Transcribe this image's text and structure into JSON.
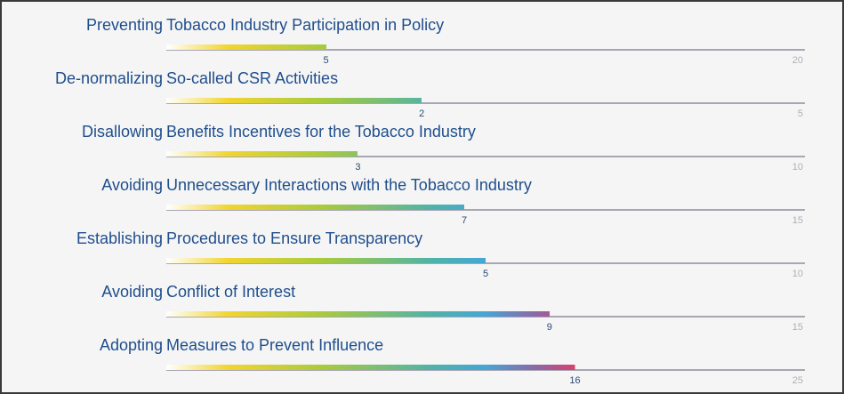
{
  "chart_data": {
    "type": "bar",
    "orientation": "horizontal",
    "categories": [
      "Preventing Tobacco Industry Participation in Policy",
      "De-normalizing So-called CSR Activities",
      "Disallowing Benefits Incentives for the Tobacco Industry",
      "Avoiding Unnecessary Interactions with the Tobacco Industry",
      "Establishing Procedures to Ensure Transparency",
      "Avoiding Conflict of Interest",
      "Adopting Measures to Prevent Influence"
    ],
    "values": [
      5,
      2,
      3,
      7,
      5,
      9,
      16
    ],
    "max_values": [
      20,
      5,
      10,
      15,
      10,
      15,
      25
    ],
    "gradient_colors": [
      "#ffffff",
      "#f2d530",
      "#a9cb3a",
      "#4fb3a8",
      "#45a6d6",
      "#8a6aa8",
      "#d9406e"
    ],
    "track_color": "#a9a6b3",
    "title_color": "#1f4e8c",
    "grid": false
  }
}
